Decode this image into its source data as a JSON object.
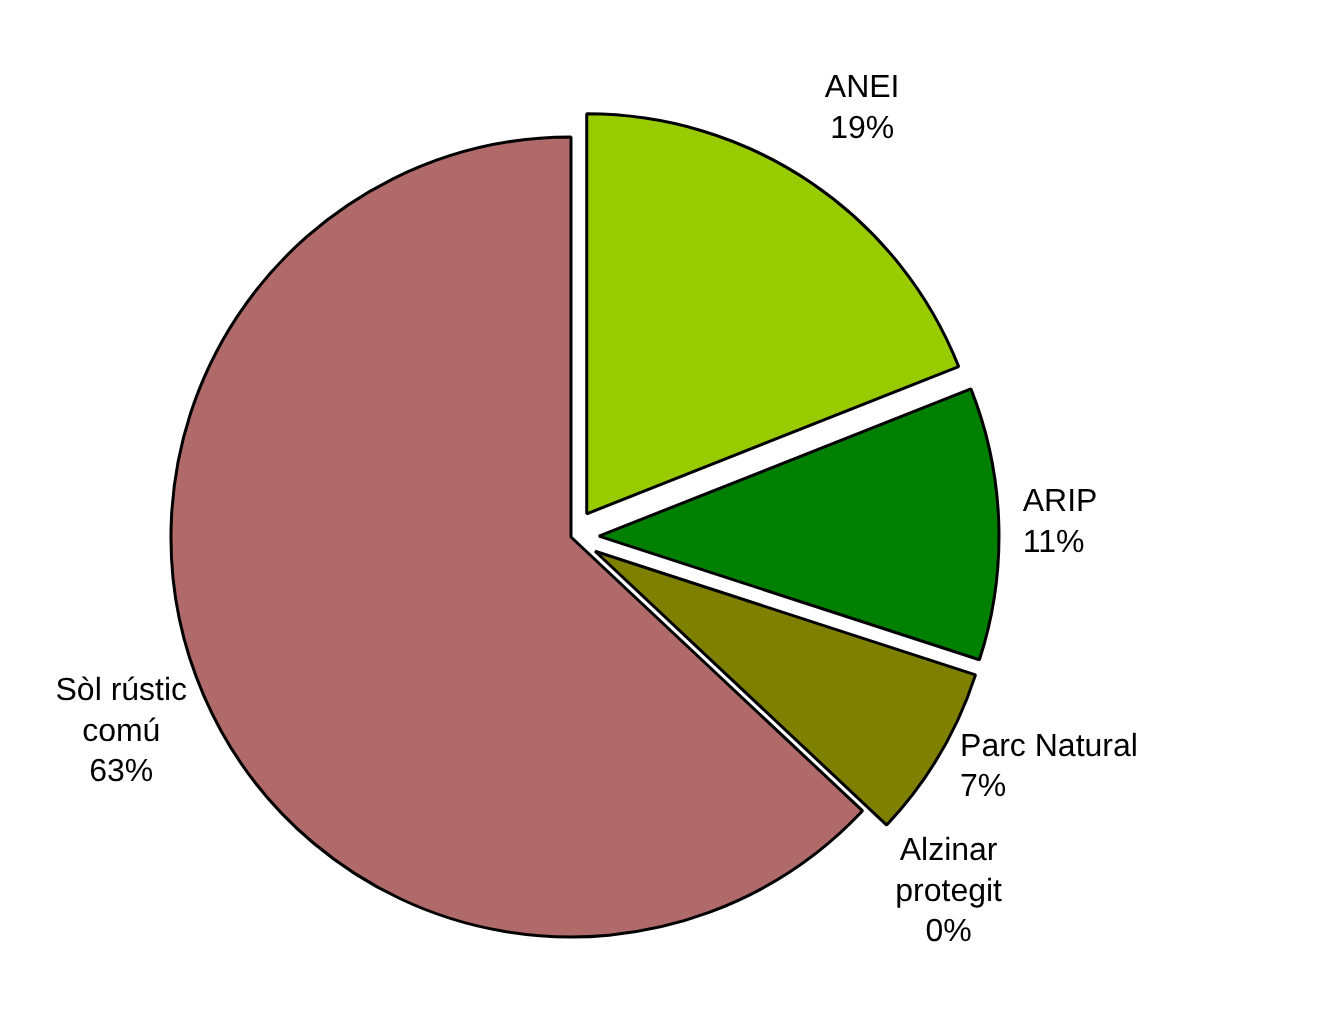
{
  "chart_data": {
    "type": "pie",
    "categories": [
      "ANEI",
      "ARIP",
      "Parc Natural",
      "Alzinar protegit",
      "Sòl rústic comú"
    ],
    "values": [
      19,
      11,
      7,
      0,
      63
    ],
    "value_labels": [
      "19%",
      "11%",
      "7%",
      "0%",
      "63%"
    ],
    "colors": [
      "#99cc00",
      "#008000",
      "#808000",
      "#c0c0c0",
      "#b06a6a"
    ]
  }
}
